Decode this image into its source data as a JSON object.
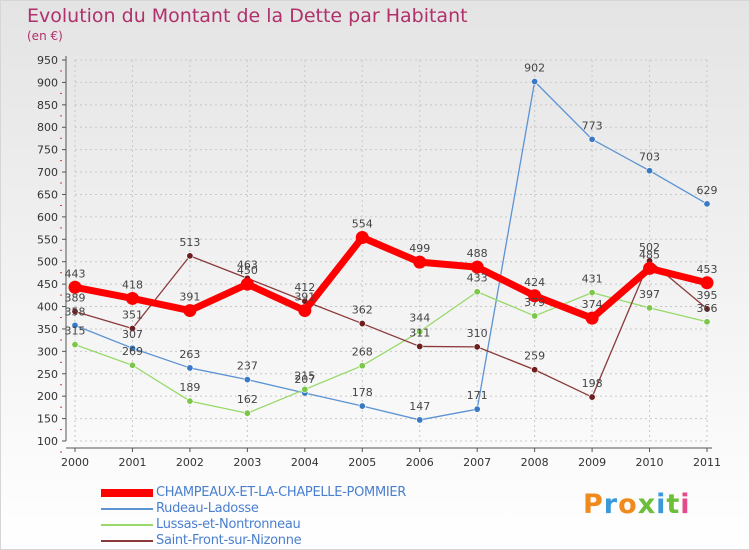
{
  "header": {
    "title": "Evolution du Montant de la Dette par Habitant",
    "subtitle": "(en €)"
  },
  "brand": {
    "logo_text": "Proxiti",
    "logo_colors": [
      "#f08a1c",
      "#3a9ad9",
      "#f08a1c",
      "#6cbf3a",
      "#3a9ad9",
      "#6cbf3a",
      "#e24a8a"
    ]
  },
  "chart_data": {
    "type": "line",
    "title": "Evolution du Montant de la Dette par Habitant",
    "subtitle": "(en €)",
    "xlabel": "",
    "ylabel": "",
    "x": [
      "2000",
      "2001",
      "2002",
      "2003",
      "2004",
      "2005",
      "2006",
      "2007",
      "2008",
      "2009",
      "2010",
      "2011"
    ],
    "ylim": [
      100,
      950
    ],
    "yticks": [
      "100",
      "150",
      "200",
      "250",
      "300",
      "350",
      "400",
      "450",
      "500",
      "550",
      "600",
      "650",
      "700",
      "750",
      "800",
      "850",
      "900",
      "950"
    ],
    "grid": true,
    "legend_position": "bottom-left",
    "series": [
      {
        "name": "Rudeau-Ladosse",
        "color": "#5b93d3",
        "marker_color": "#3a7ac4",
        "thick": false,
        "values": [
          358,
          307,
          263,
          237,
          207,
          178,
          147,
          171,
          902,
          773,
          703,
          629
        ],
        "labels": [
          "358",
          "307",
          "263",
          "237",
          "207",
          "178",
          "147",
          "171",
          "902",
          "773",
          "703",
          "629"
        ]
      },
      {
        "name": "Lussas-et-Nontronneau",
        "color": "#98d96a",
        "marker_color": "#7cc64a",
        "thick": false,
        "values": [
          315,
          269,
          189,
          162,
          215,
          268,
          344,
          433,
          379,
          431,
          397,
          366
        ],
        "labels": [
          "315",
          "269",
          "189",
          "162",
          "215",
          "268",
          "344",
          "433",
          "379",
          "431",
          "397",
          "366"
        ]
      },
      {
        "name": "Saint-Front-sur-Nizonne",
        "color": "#8b3a3a",
        "marker_color": "#6e1e1e",
        "thick": false,
        "values": [
          389,
          351,
          513,
          463,
          412,
          362,
          311,
          310,
          259,
          198,
          502,
          395
        ],
        "labels": [
          "389",
          "351",
          "513",
          "463",
          "412",
          "362",
          "311",
          "310",
          "259",
          "198",
          "502",
          "395"
        ]
      },
      {
        "name": "CHAMPEAUX-ET-LA-CHAPELLE-POMMIER",
        "color": "#ff0000",
        "marker_color": "#ff0000",
        "thick": true,
        "values": [
          443,
          418,
          391,
          450,
          391,
          554,
          499,
          488,
          424,
          374,
          485,
          453
        ],
        "labels": [
          "443",
          "418",
          "391",
          "450",
          "391",
          "554",
          "499",
          "488",
          "424",
          "374",
          "485",
          "453"
        ]
      }
    ],
    "legend_order": [
      "CHAMPEAUX-ET-LA-CHAPELLE-POMMIER",
      "Rudeau-Ladosse",
      "Lussas-et-Nontronneau",
      "Saint-Front-sur-Nizonne"
    ]
  }
}
